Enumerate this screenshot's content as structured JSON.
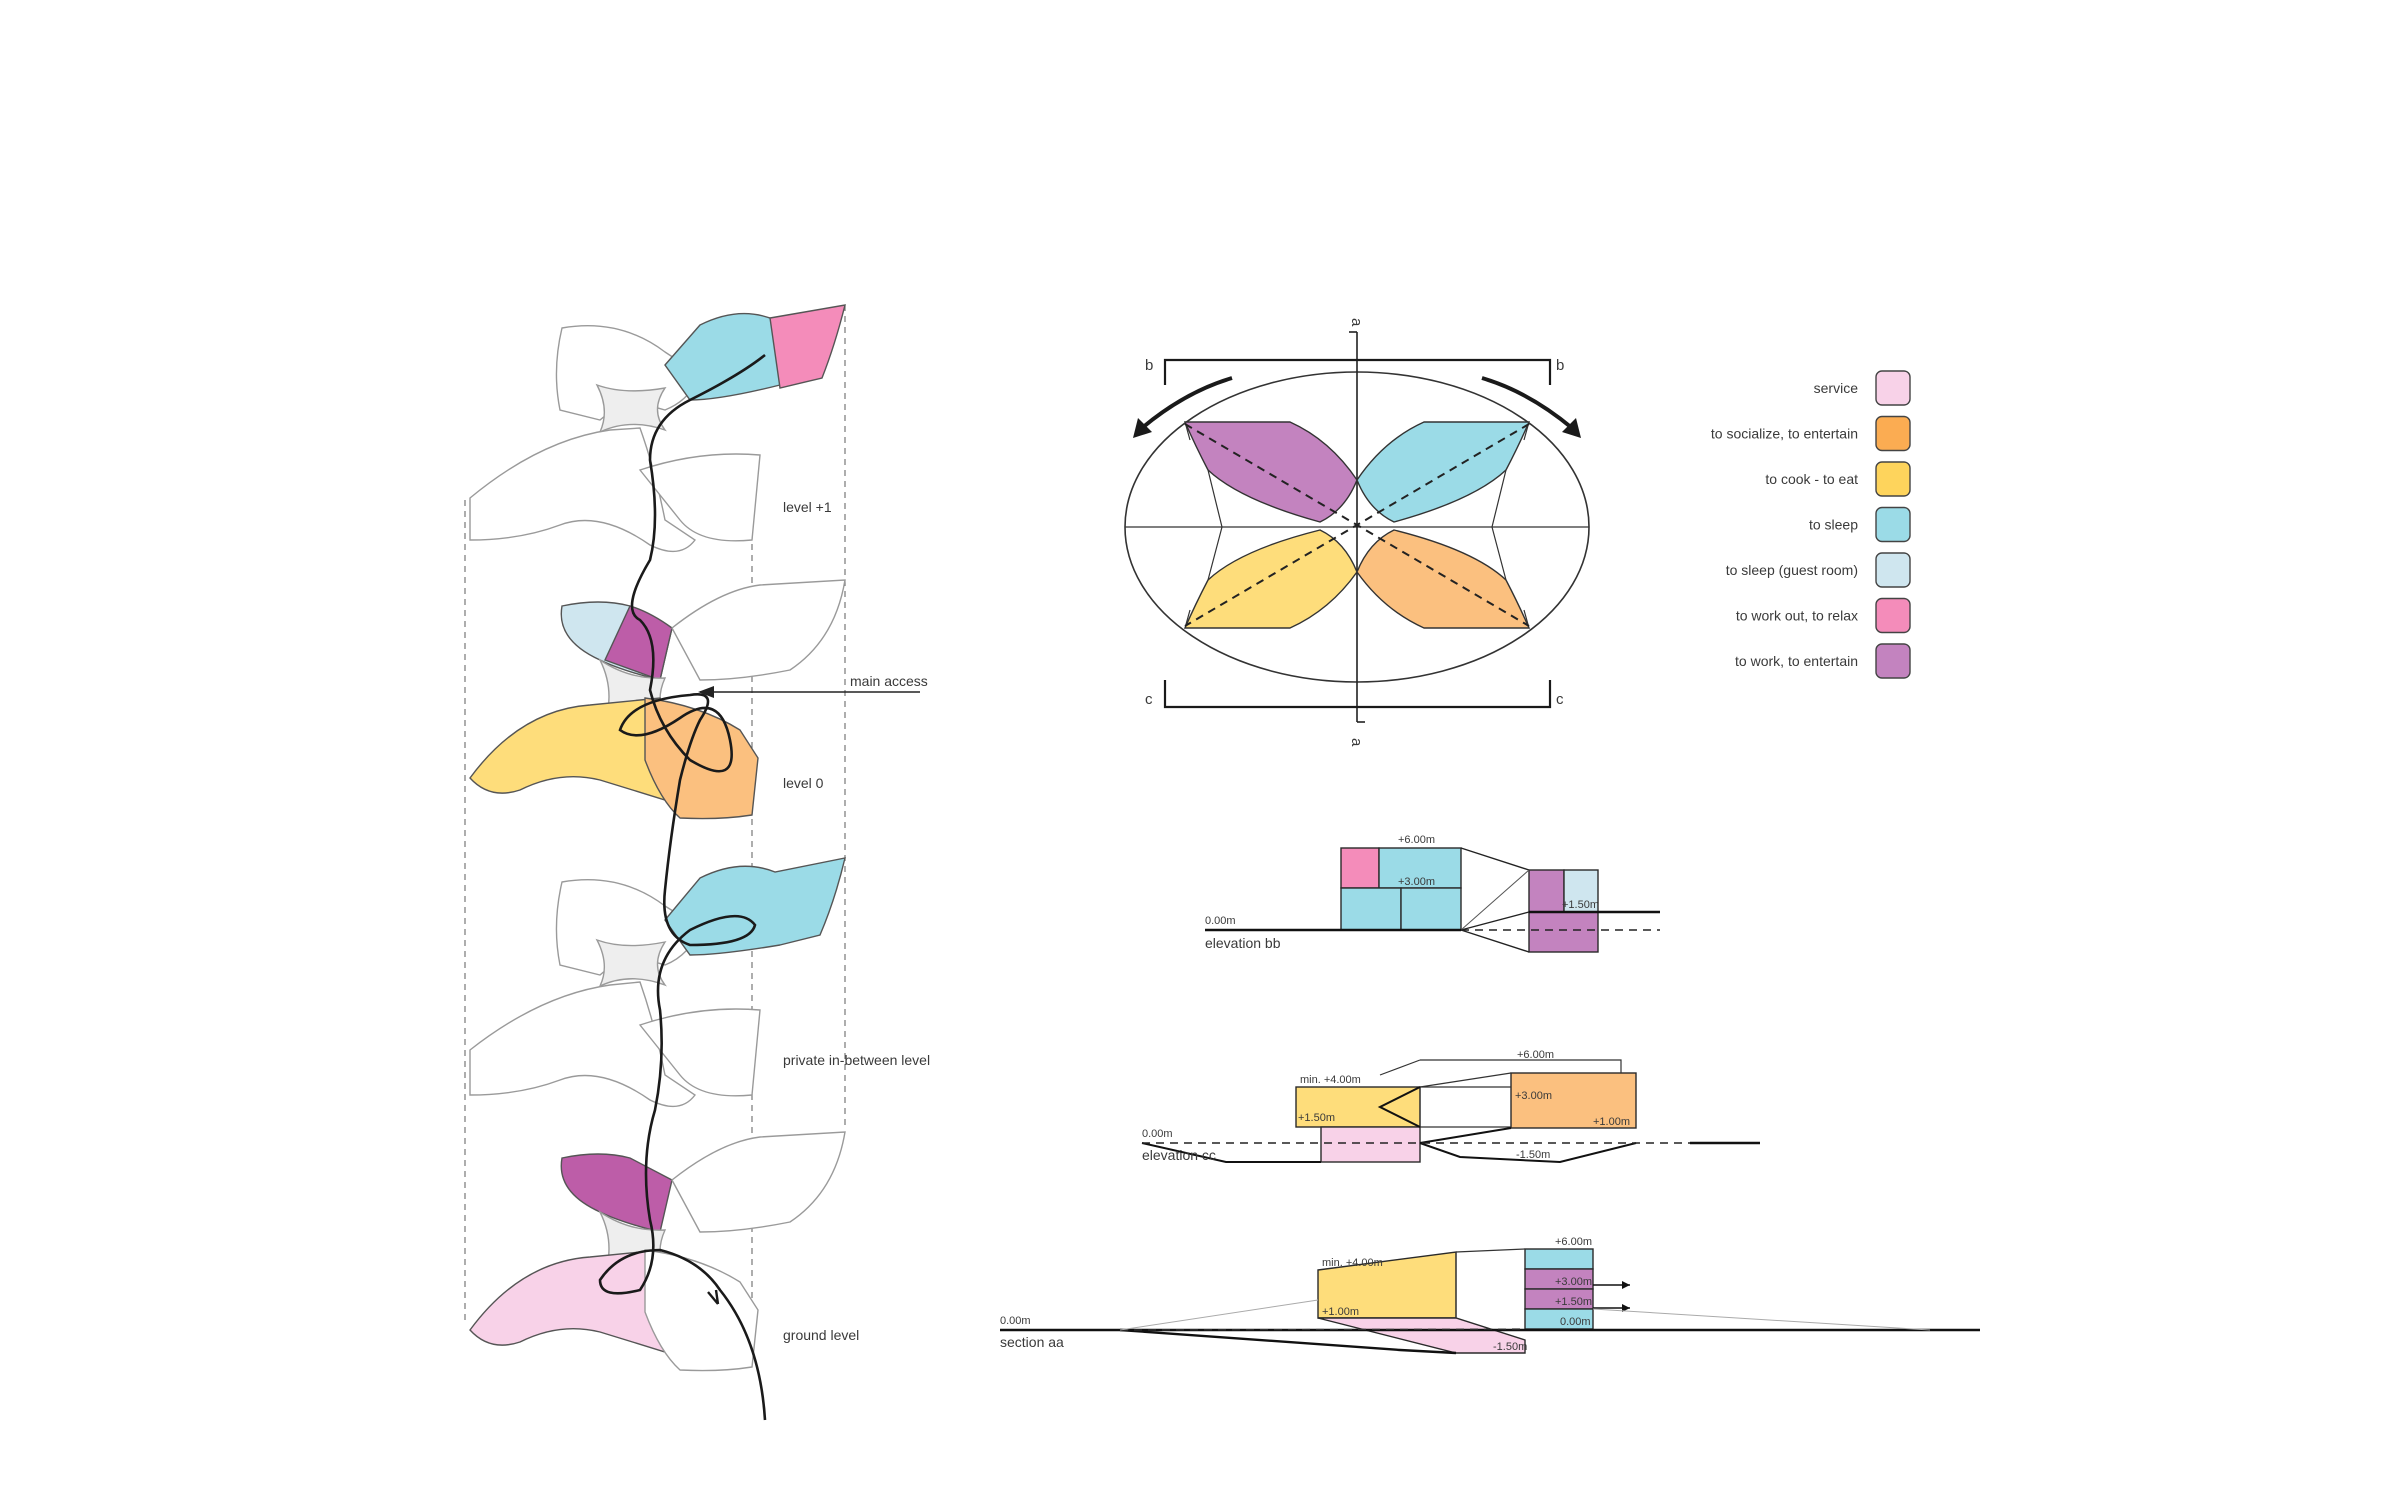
{
  "colors": {
    "service": "#f8d2e8",
    "socialize": "#fbc07f",
    "cook": "#fedd7b",
    "sleep": "#9bdbe7",
    "guest": "#cfe6ef",
    "workout": "#f48cba",
    "work": "#c383bf",
    "work_dark": "#bd5da8"
  },
  "axon": {
    "levels": [
      "level +1",
      "level 0",
      "private in-between level",
      "ground level"
    ],
    "main_access": "main access"
  },
  "plan": {
    "marks": {
      "a_top": "a",
      "a_bottom": "a",
      "b_left": "b",
      "b_right": "b",
      "c_left": "c",
      "c_right": "c"
    }
  },
  "legend": [
    {
      "label": "service",
      "color": "#f8d2e8"
    },
    {
      "label": "to socialize, to entertain",
      "color": "#fbac52"
    },
    {
      "label": "to cook - to eat",
      "color": "#fed45c"
    },
    {
      "label": "to sleep",
      "color": "#9bdbe7"
    },
    {
      "label": "to sleep (guest room)",
      "color": "#cfe6ef"
    },
    {
      "label": "to work out, to relax",
      "color": "#f48cba"
    },
    {
      "label": "to work, to entertain",
      "color": "#c383bf"
    }
  ],
  "elevation_bb": {
    "title": "elevation bb",
    "ground": "0.00m",
    "h6": "+6.00m",
    "h3": "+3.00m",
    "h15": "+1.50m"
  },
  "elevation_cc": {
    "title": "elevation cc",
    "ground": "0.00m",
    "min": "min. +4.00m",
    "h6": "+6.00m",
    "h3": "+3.00m",
    "h15": "+1.50m",
    "h1": "+1.00m",
    "m15": "-1.50m"
  },
  "section_aa": {
    "title": "section aa",
    "ground": "0.00m",
    "min": "min. +4.00m",
    "h6": "+6.00m",
    "h3": "+3.00m",
    "h15": "+1.50m",
    "h1": "+1.00m",
    "h0": "0.00m",
    "m15": "-1.50m"
  }
}
